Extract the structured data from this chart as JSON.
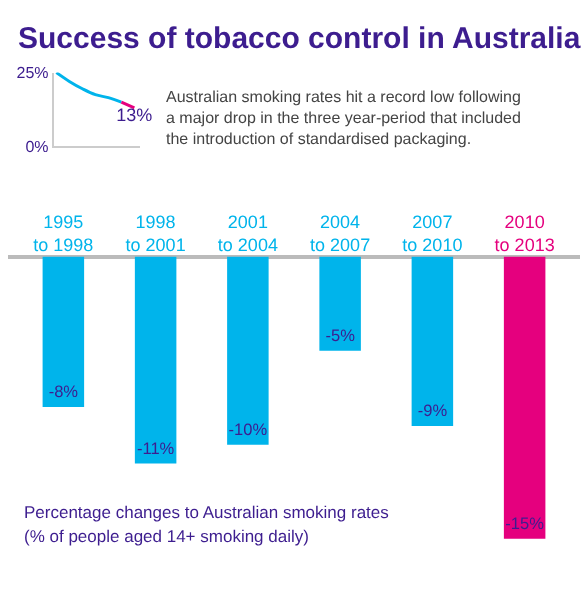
{
  "chart_data": [
    {
      "type": "line",
      "title": "Success of tobacco control in Australia",
      "annotations": [
        "Australian smoking rates hit a record low following a major drop in the three year-period that included the introduction of standardised packaging."
      ],
      "categories": [
        null,
        null,
        null,
        null,
        null,
        null,
        null
      ],
      "series": [
        {
          "color": "#00b4eb",
          "values": [
            25,
            22,
            19.5,
            17.5,
            16.5,
            15,
            null
          ]
        },
        {
          "color": "#e5007e",
          "values": [
            null,
            null,
            null,
            null,
            null,
            15,
            13
          ],
          "value_labels": [
            null,
            null,
            null,
            null,
            null,
            null,
            "13%"
          ]
        }
      ],
      "ylim": [
        0,
        25
      ],
      "yticks": [
        {
          "value": 0,
          "label": "0%"
        },
        {
          "value": 25,
          "label": "25%"
        }
      ],
      "tick_labels": "y"
    },
    {
      "type": "bar",
      "categories": [
        "1995 to 1998",
        "1998 to 2001",
        "2001 to 2004",
        "2004 to 2007",
        "2007 to 2010",
        "2010 to 2013"
      ],
      "values": [
        -8,
        -11,
        -10,
        -5,
        -9,
        -15
      ],
      "value_labels": [
        "-8%",
        "-11%",
        "-10%",
        "-5%",
        "-9%",
        "-15%"
      ],
      "colors": [
        "#00b4eb",
        "#00b4eb",
        "#00b4eb",
        "#00b4eb",
        "#00b4eb",
        "#e5007e"
      ],
      "tick_labels": "x",
      "annotations": [
        "Percentage changes to Australian smoking rates",
        "(% of people aged 14+ smoking daily)"
      ]
    }
  ]
}
